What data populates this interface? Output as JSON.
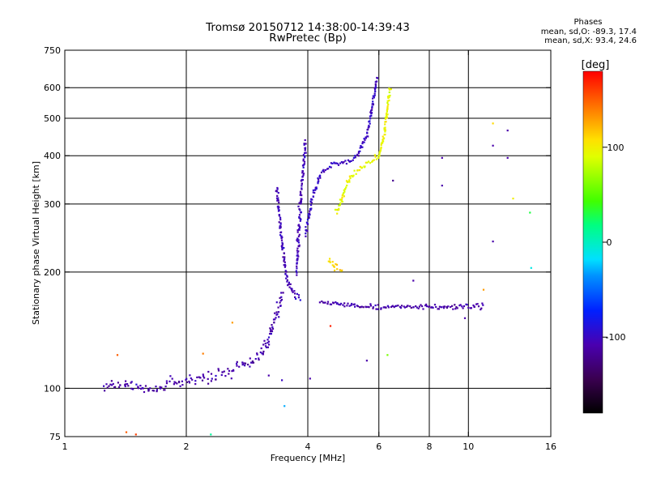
{
  "title_line1": "Tromsø 20150712 14:38:00-14:39:43",
  "title_line2": "RwPretec (Bp)",
  "stats": {
    "title": "Phases",
    "line_o": "mean, sd,O: -89.3, 17.4",
    "line_x": "mean, sd,X:  93.4, 24.6"
  },
  "colorbar": {
    "title": "[deg]",
    "ticks": [
      {
        "value": 100,
        "label": "100"
      },
      {
        "value": 0,
        "label": "0"
      },
      {
        "value": -100,
        "label": "-100"
      }
    ],
    "range": [
      -180,
      180
    ]
  },
  "chart_data": {
    "type": "scatter",
    "xlabel": "Frequency [MHz]",
    "ylabel": "Stationary phase Virtual Height [km]",
    "xscale": "log",
    "yscale": "log",
    "xlim": [
      1,
      16
    ],
    "ylim": [
      75,
      750
    ],
    "xticks": [
      {
        "value": 1,
        "label": "1"
      },
      {
        "value": 2,
        "label": "2"
      },
      {
        "value": 4,
        "label": "4"
      },
      {
        "value": 6,
        "label": "6"
      },
      {
        "value": 8,
        "label": "8"
      },
      {
        "value": 10,
        "label": "10"
      },
      {
        "value": 16,
        "label": "16"
      }
    ],
    "xgrid": [
      2,
      4,
      6,
      8,
      10
    ],
    "yticks": [
      {
        "value": 75,
        "label": "75"
      },
      {
        "value": 100,
        "label": "100"
      },
      {
        "value": 200,
        "label": "200"
      },
      {
        "value": 300,
        "label": "300"
      },
      {
        "value": 400,
        "label": "400"
      },
      {
        "value": 500,
        "label": "500"
      },
      {
        "value": 600,
        "label": "600"
      },
      {
        "value": 750,
        "label": "750"
      }
    ],
    "ygrid": [
      100,
      200,
      300,
      400,
      500,
      600
    ],
    "grid": true,
    "color_by": "phase_deg",
    "traces": [
      {
        "name": "E/low-F",
        "phase": -110,
        "spread": 0.035,
        "path": [
          [
            1.25,
            101
          ],
          [
            1.4,
            103
          ],
          [
            1.6,
            99
          ],
          [
            1.8,
            102
          ],
          [
            2.0,
            105
          ],
          [
            2.2,
            107
          ],
          [
            2.5,
            110
          ],
          [
            2.8,
            115
          ],
          [
            3.05,
            122
          ],
          [
            3.2,
            135
          ],
          [
            3.35,
            155
          ],
          [
            3.45,
            175
          ]
        ]
      },
      {
        "name": "F1-lower",
        "phase": -110,
        "spread": 0.015,
        "path": [
          [
            4.3,
            168
          ],
          [
            4.6,
            166
          ],
          [
            5.0,
            164
          ],
          [
            5.5,
            163
          ],
          [
            6.0,
            162
          ],
          [
            6.5,
            163
          ],
          [
            7.5,
            163
          ],
          [
            8.5,
            162
          ],
          [
            9.5,
            163
          ],
          [
            11.0,
            163
          ]
        ]
      },
      {
        "name": "F-column-a",
        "phase": -105,
        "spread": 0.02,
        "path": [
          [
            3.35,
            330
          ],
          [
            3.4,
            280
          ],
          [
            3.45,
            240
          ],
          [
            3.5,
            210
          ],
          [
            3.55,
            190
          ],
          [
            3.65,
            180
          ],
          [
            3.75,
            172
          ],
          [
            3.85,
            170
          ]
        ]
      },
      {
        "name": "F-column-b",
        "phase": -105,
        "spread": 0.02,
        "path": [
          [
            3.75,
            200
          ],
          [
            3.8,
            260
          ],
          [
            3.85,
            320
          ],
          [
            3.9,
            380
          ],
          [
            3.95,
            440
          ]
        ]
      },
      {
        "name": "F2-O",
        "phase": -100,
        "spread": 0.015,
        "path": [
          [
            3.95,
            250
          ],
          [
            4.1,
            310
          ],
          [
            4.3,
            360
          ],
          [
            4.6,
            380
          ],
          [
            5.0,
            385
          ],
          [
            5.3,
            400
          ],
          [
            5.6,
            450
          ],
          [
            5.8,
            550
          ],
          [
            5.95,
            640
          ]
        ]
      },
      {
        "name": "F2-X",
        "phase": 95,
        "spread": 0.015,
        "path": [
          [
            4.7,
            285
          ],
          [
            4.85,
            310
          ],
          [
            5.0,
            340
          ],
          [
            5.2,
            360
          ],
          [
            5.6,
            380
          ],
          [
            6.0,
            400
          ],
          [
            6.2,
            460
          ],
          [
            6.3,
            540
          ],
          [
            6.4,
            600
          ]
        ]
      },
      {
        "name": "F1-X",
        "phase": 110,
        "spread": 0.02,
        "path": [
          [
            4.5,
            215
          ],
          [
            4.7,
            205
          ],
          [
            4.9,
            200
          ]
        ]
      }
    ],
    "markers": [
      {
        "x": 1.5,
        "y": 76,
        "phase": 160
      },
      {
        "x": 1.42,
        "y": 77,
        "phase": 150
      },
      {
        "x": 1.35,
        "y": 122,
        "phase": 150
      },
      {
        "x": 2.2,
        "y": 123,
        "phase": 140
      },
      {
        "x": 2.6,
        "y": 148,
        "phase": 130
      },
      {
        "x": 2.3,
        "y": 76,
        "phase": 10
      },
      {
        "x": 3.5,
        "y": 90,
        "phase": -30
      },
      {
        "x": 3.45,
        "y": 105,
        "phase": -100
      },
      {
        "x": 4.55,
        "y": 145,
        "phase": 170
      },
      {
        "x": 5.6,
        "y": 118,
        "phase": -110
      },
      {
        "x": 6.3,
        "y": 122,
        "phase": 60
      },
      {
        "x": 6.5,
        "y": 345,
        "phase": -120
      },
      {
        "x": 7.3,
        "y": 190,
        "phase": -110
      },
      {
        "x": 8.6,
        "y": 335,
        "phase": -110
      },
      {
        "x": 8.6,
        "y": 395,
        "phase": -110
      },
      {
        "x": 11.5,
        "y": 485,
        "phase": 110
      },
      {
        "x": 12.5,
        "y": 465,
        "phase": -110
      },
      {
        "x": 12.5,
        "y": 395,
        "phase": -110
      },
      {
        "x": 11.5,
        "y": 425,
        "phase": -110
      },
      {
        "x": 11.5,
        "y": 240,
        "phase": -110
      },
      {
        "x": 12.9,
        "y": 310,
        "phase": 100
      },
      {
        "x": 14.2,
        "y": 285,
        "phase": 30
      },
      {
        "x": 14.3,
        "y": 205,
        "phase": -10
      },
      {
        "x": 10.9,
        "y": 180,
        "phase": 130
      },
      {
        "x": 9.8,
        "y": 152,
        "phase": -110
      },
      {
        "x": 3.2,
        "y": 108,
        "phase": -110
      },
      {
        "x": 4.05,
        "y": 106,
        "phase": -110
      }
    ]
  }
}
